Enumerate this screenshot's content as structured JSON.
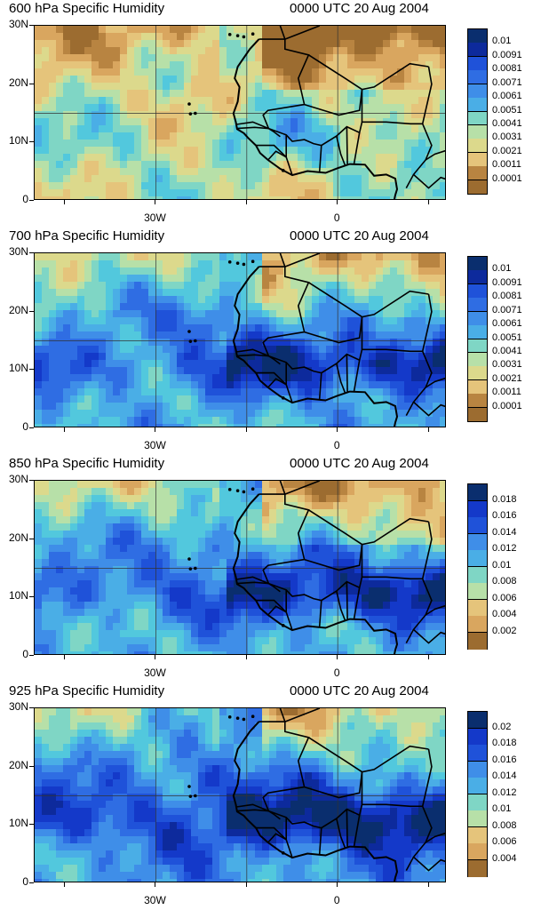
{
  "panels": [
    {
      "title": "600 hPa Specific Humidity",
      "time": "0000 UTC 20 Aug 2004",
      "lat_labels": [
        "30N",
        "20N",
        "10N",
        "0"
      ],
      "lon_labels": [
        "30W",
        "0"
      ],
      "colorbar_labels": [
        "0.01",
        "0.0091",
        "0.0081",
        "0.0071",
        "0.0061",
        "0.0051",
        "0.0041",
        "0.0031",
        "0.0021",
        "0.0011",
        "0.0001"
      ],
      "colorbar_colors": [
        "#0a2e6e",
        "#0d2a9c",
        "#1439c9",
        "#1f52d9",
        "#2f6de3",
        "#3f8ee8",
        "#4aaee6",
        "#52c8dd",
        "#7fd6c5",
        "#b7e0a8",
        "#dcd98c",
        "#e5c47b",
        "#d9a65f",
        "#b88441",
        "#9c6c30"
      ],
      "humidity_level": "dry"
    },
    {
      "title": "700 hPa Specific Humidity",
      "time": "0000 UTC 20 Aug 2004",
      "lat_labels": [
        "30N",
        "20N",
        "10N",
        "0"
      ],
      "lon_labels": [
        "30W",
        "0"
      ],
      "colorbar_labels": [
        "0.01",
        "0.0091",
        "0.0081",
        "0.0071",
        "0.0061",
        "0.0051",
        "0.0041",
        "0.0031",
        "0.0021",
        "0.0011",
        "0.0001"
      ],
      "colorbar_colors": [
        "#0a2e6e",
        "#0d2a9c",
        "#1439c9",
        "#1f52d9",
        "#2f6de3",
        "#3f8ee8",
        "#4aaee6",
        "#52c8dd",
        "#7fd6c5",
        "#b7e0a8",
        "#dcd98c",
        "#e5c47b",
        "#d9a65f",
        "#b88441",
        "#9c6c30"
      ],
      "humidity_level": "moist"
    },
    {
      "title": "850 hPa Specific Humidity",
      "time": "0000 UTC 20 Aug 2004",
      "lat_labels": [
        "30N",
        "20N",
        "10N",
        "0"
      ],
      "lon_labels": [
        "30W",
        "0"
      ],
      "colorbar_labels": [
        "0.018",
        "0.016",
        "0.014",
        "0.012",
        "0.01",
        "0.008",
        "0.006",
        "0.004",
        "0.002"
      ],
      "colorbar_colors": [
        "#0a2e6e",
        "#0d2a9c",
        "#1439c9",
        "#1f52d9",
        "#2f6de3",
        "#3f8ee8",
        "#4aaee6",
        "#52c8dd",
        "#7fd6c5",
        "#b7e0a8",
        "#dcd98c",
        "#e5c47b",
        "#d9a65f",
        "#b88441",
        "#9c6c30"
      ],
      "humidity_level": "moist"
    },
    {
      "title": "925 hPa Specific Humidity",
      "time": "0000 UTC 20 Aug 2004",
      "lat_labels": [
        "30N",
        "20N",
        "10N",
        "0"
      ],
      "lon_labels": [
        "30W",
        "0"
      ],
      "colorbar_labels": [
        "0.02",
        "0.018",
        "0.016",
        "0.014",
        "0.012",
        "0.01",
        "0.008",
        "0.006",
        "0.004"
      ],
      "colorbar_colors": [
        "#0a2e6e",
        "#0d2a9c",
        "#1439c9",
        "#1f52d9",
        "#2f6de3",
        "#3f8ee8",
        "#4aaee6",
        "#52c8dd",
        "#7fd6c5",
        "#b7e0a8",
        "#dcd98c",
        "#e5c47b",
        "#d9a65f",
        "#b88441",
        "#9c6c30"
      ],
      "humidity_level": "wet"
    }
  ]
}
